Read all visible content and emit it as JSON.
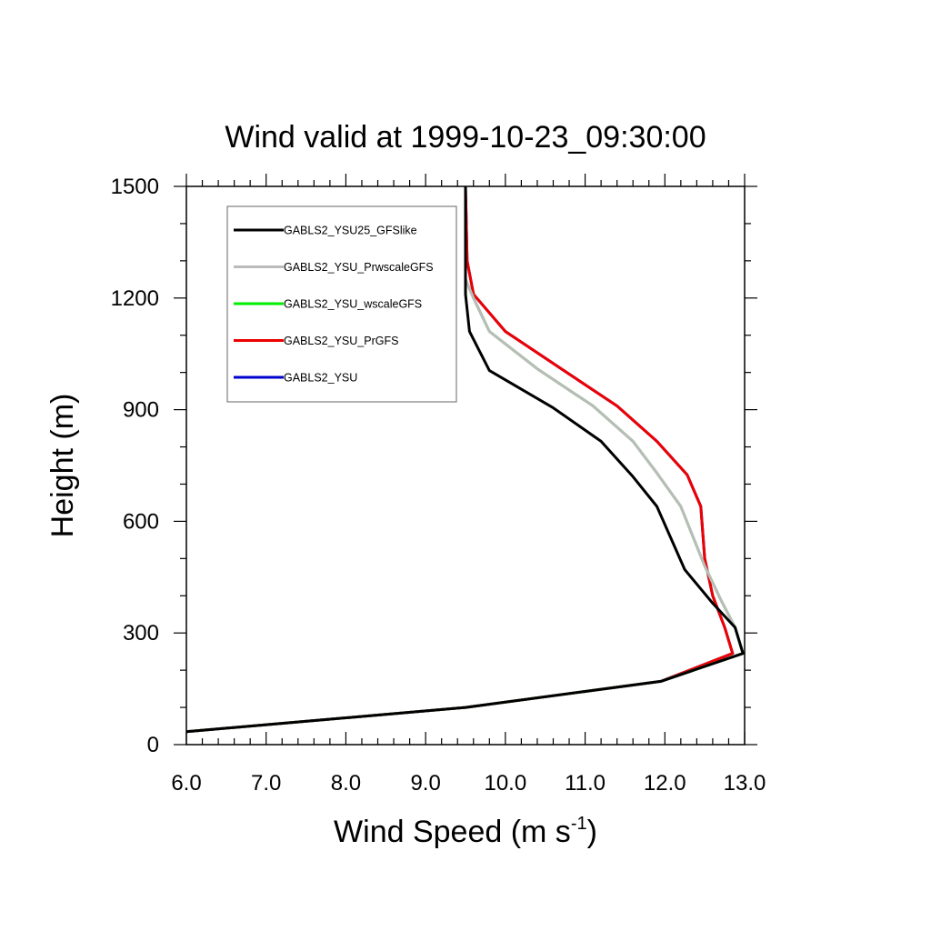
{
  "chart_data": {
    "type": "line",
    "title": "Wind valid at 1999-10-23_09:30:00",
    "xlabel": "Wind Speed (m s",
    "xlabel_superscript": "-1",
    "xlabel_suffix": ")",
    "ylabel": "Height (m)",
    "xlim": [
      6.0,
      13.0
    ],
    "ylim": [
      0,
      1500
    ],
    "x_ticks": [
      "6.0",
      "7.0",
      "8.0",
      "9.0",
      "10.0",
      "11.0",
      "12.0",
      "13.0"
    ],
    "y_ticks": [
      "0",
      "300",
      "600",
      "900",
      "1200",
      "1500"
    ],
    "grid": false,
    "legend_position": "top-left",
    "series": [
      {
        "name": "GABLS2_YSU25_GFSlike",
        "color": "#000000",
        "points": [
          [
            6.0,
            35
          ],
          [
            9.5,
            100
          ],
          [
            11.95,
            170
          ],
          [
            12.98,
            245
          ],
          [
            12.88,
            315
          ],
          [
            12.6,
            380
          ],
          [
            12.25,
            470
          ],
          [
            11.9,
            640
          ],
          [
            11.6,
            720
          ],
          [
            11.2,
            815
          ],
          [
            10.6,
            905
          ],
          [
            9.8,
            1005
          ],
          [
            9.55,
            1110
          ],
          [
            9.5,
            1210
          ],
          [
            9.5,
            1500
          ]
        ]
      },
      {
        "name": "GABLS2_YSU_PrwscaleGFS",
        "color": "#bbbbbb",
        "points": [
          [
            6.0,
            35
          ],
          [
            9.5,
            100
          ],
          [
            11.95,
            170
          ],
          [
            12.98,
            245
          ],
          [
            12.88,
            315
          ],
          [
            12.7,
            390
          ],
          [
            12.5,
            480
          ],
          [
            12.2,
            640
          ],
          [
            11.9,
            730
          ],
          [
            11.6,
            815
          ],
          [
            11.1,
            910
          ],
          [
            10.4,
            1010
          ],
          [
            9.8,
            1110
          ],
          [
            9.6,
            1200
          ],
          [
            9.5,
            1250
          ],
          [
            9.5,
            1500
          ]
        ]
      },
      {
        "name": "GABLS2_YSU_wscaleGFS",
        "color": "#00ee00",
        "points": [
          [
            6.0,
            35
          ],
          [
            9.5,
            100
          ],
          [
            11.95,
            170
          ],
          [
            12.98,
            245
          ],
          [
            12.88,
            315
          ],
          [
            12.7,
            390
          ],
          [
            12.5,
            480
          ],
          [
            12.2,
            640
          ],
          [
            11.9,
            730
          ],
          [
            11.6,
            815
          ],
          [
            11.1,
            910
          ],
          [
            10.4,
            1010
          ],
          [
            9.8,
            1110
          ],
          [
            9.6,
            1200
          ],
          [
            9.5,
            1250
          ],
          [
            9.5,
            1500
          ]
        ]
      },
      {
        "name": "GABLS2_YSU_PrGFS",
        "color": "#ee0000",
        "points": [
          [
            6.0,
            35
          ],
          [
            9.5,
            100
          ],
          [
            11.95,
            170
          ],
          [
            12.85,
            245
          ],
          [
            12.75,
            315
          ],
          [
            12.6,
            400
          ],
          [
            12.5,
            500
          ],
          [
            12.45,
            640
          ],
          [
            12.28,
            725
          ],
          [
            11.9,
            815
          ],
          [
            11.4,
            910
          ],
          [
            10.7,
            1010
          ],
          [
            10.0,
            1110
          ],
          [
            9.6,
            1210
          ],
          [
            9.52,
            1300
          ],
          [
            9.5,
            1500
          ]
        ]
      },
      {
        "name": "GABLS2_YSU",
        "color": "#0000cc",
        "points": [
          [
            6.0,
            35
          ],
          [
            9.5,
            100
          ],
          [
            11.95,
            170
          ],
          [
            12.85,
            245
          ],
          [
            12.75,
            315
          ],
          [
            12.6,
            400
          ],
          [
            12.5,
            500
          ],
          [
            12.45,
            640
          ],
          [
            12.28,
            725
          ],
          [
            11.9,
            815
          ],
          [
            11.4,
            910
          ],
          [
            10.7,
            1010
          ],
          [
            10.0,
            1110
          ],
          [
            9.6,
            1210
          ],
          [
            9.52,
            1300
          ],
          [
            9.5,
            1500
          ]
        ]
      }
    ],
    "draw_order": [
      4,
      3,
      2,
      1,
      0
    ]
  }
}
